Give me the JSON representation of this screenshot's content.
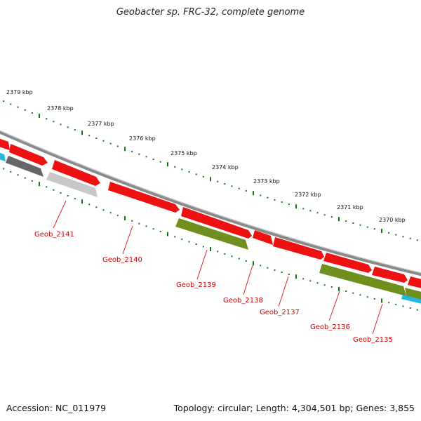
{
  "title": "Geobacter sp. FRC-32, complete genome",
  "footer": {
    "accession": "Accession: NC_011979",
    "summary": "Topology: circular; Length: 4,304,501 bp; Genes: 3,855"
  },
  "scale_labels": [
    "2379 kbp",
    "2378 kbp",
    "2377 kbp",
    "2376 kbp",
    "2375 kbp",
    "2374 kbp",
    "2373 kbp",
    "2372 kbp",
    "2371 kbp",
    "2370 kbp"
  ],
  "gene_labels": [
    "Geob_2141",
    "Geob_2140",
    "Geob_2139",
    "Geob_2138",
    "Geob_2137",
    "Geob_2136",
    "Geob_2135"
  ],
  "colors": {
    "forward_gene": "#ee1111",
    "reverse_gene_dark": "#666666",
    "reverse_gene_light": "#c8c8c8",
    "olive_gene": "#6f8f1e",
    "cyan_gene": "#22b8e0",
    "backbone": "#8a8a8a",
    "tick": "#117711",
    "label": "#cc0000"
  }
}
